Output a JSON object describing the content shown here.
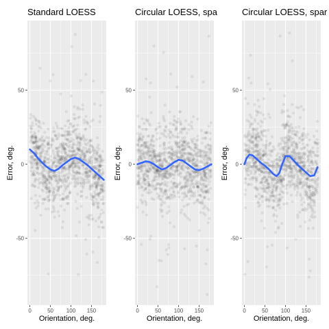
{
  "chart_data": [
    {
      "type": "scatter",
      "title": "Standard LOESS",
      "xlabel": "Orientation, deg.",
      "ylabel": "Error, deg.",
      "xlim": [
        -6,
        186
      ],
      "ylim": [
        -95,
        97
      ],
      "x_ticks": [
        0,
        50,
        100,
        150
      ],
      "y_ticks": [
        -50,
        0,
        50
      ],
      "x_tick_labels": [
        "0",
        "50",
        "100",
        "150"
      ],
      "y_tick_labels": [
        "-50",
        "0",
        "50"
      ],
      "point_color": "#000000",
      "point_alpha": 0.07,
      "grid": true,
      "smooth": {
        "name": "LOESS fit",
        "color": "#3366ff",
        "x": [
          0,
          10,
          20,
          30,
          40,
          50,
          60,
          70,
          80,
          90,
          100,
          110,
          120,
          130,
          140,
          150,
          160,
          170,
          180
        ],
        "y": [
          10,
          7.5,
          4,
          1,
          -1.5,
          -3.5,
          -4.5,
          -3,
          -0.5,
          1.5,
          3.5,
          4.5,
          3.5,
          1.5,
          -0.5,
          -3,
          -5.5,
          -8,
          -10.5
        ]
      }
    },
    {
      "type": "scatter",
      "title": "Circular LOESS, spa",
      "xlabel": "Orientation, deg.",
      "ylabel": "Error, deg.",
      "xlim": [
        -6,
        186
      ],
      "ylim": [
        -95,
        97
      ],
      "x_ticks": [
        0,
        50,
        100,
        150
      ],
      "y_ticks": [
        -50,
        0,
        50
      ],
      "x_tick_labels": [
        "0",
        "50",
        "100",
        "150"
      ],
      "y_tick_labels": [
        "-50",
        "0",
        "50"
      ],
      "point_color": "#000000",
      "point_alpha": 0.07,
      "grid": true,
      "smooth": {
        "name": "LOESS fit",
        "color": "#3366ff",
        "x": [
          0,
          10,
          20,
          30,
          40,
          50,
          60,
          70,
          80,
          90,
          100,
          110,
          120,
          130,
          140,
          150,
          160,
          170,
          180
        ],
        "y": [
          0,
          1,
          2,
          1.5,
          0,
          -2,
          -3.5,
          -2.5,
          -0.5,
          1.5,
          3,
          2.5,
          0.5,
          -1.5,
          -3.5,
          -4,
          -3,
          -1.5,
          0
        ]
      }
    },
    {
      "type": "scatter",
      "title": "Circular LOESS, spar",
      "xlabel": "Orientation, deg.",
      "ylabel": "Error, deg.",
      "xlim": [
        -6,
        186
      ],
      "ylim": [
        -95,
        97
      ],
      "x_ticks": [
        0,
        50,
        100,
        150
      ],
      "y_ticks": [
        -50,
        0,
        50
      ],
      "x_tick_labels": [
        "0",
        "50",
        "100",
        "150"
      ],
      "y_tick_labels": [
        "-50",
        "0",
        "50"
      ],
      "point_color": "#000000",
      "point_alpha": 0.07,
      "grid": true,
      "smooth": {
        "name": "LOESS fit",
        "color": "#3366ff",
        "x": [
          0,
          5,
          12,
          20,
          30,
          40,
          50,
          60,
          70,
          78,
          85,
          92,
          100,
          110,
          120,
          130,
          140,
          150,
          160,
          170,
          178
        ],
        "y": [
          0,
          4,
          6.5,
          6,
          3.5,
          1,
          -1,
          -3.5,
          -6.5,
          -8,
          -6,
          0,
          5.5,
          5.5,
          2.5,
          -0.5,
          -3,
          -5.5,
          -8,
          -7.5,
          -2
        ]
      }
    }
  ]
}
